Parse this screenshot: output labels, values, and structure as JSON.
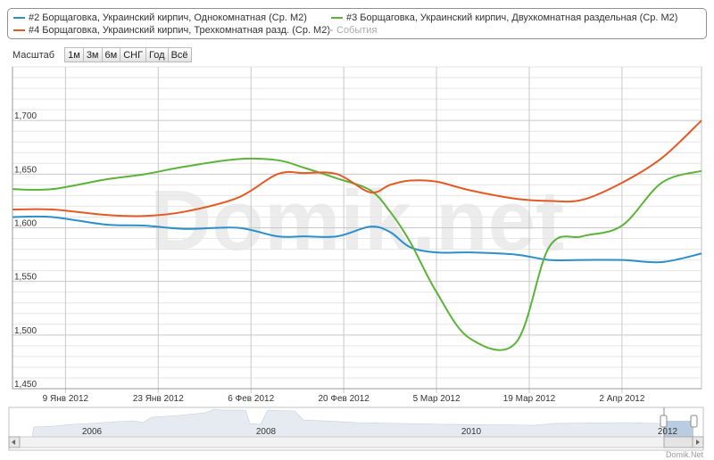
{
  "legend": [
    {
      "label": "#2 Борщаговка, Украинский кирпич, Однокомнатная (Ср. М2)",
      "color": "#2b8fcb"
    },
    {
      "label": "#3 Борщаговка, Украинский кирпич, Двухкомнатная раздельная (Ср. М2)",
      "color": "#5db23a"
    },
    {
      "label": "#4 Борщаговка, Украинский кирпич, Трехкомнатная разд. (Ср. М2)",
      "color": "#e35a24"
    },
    {
      "label": "События",
      "color": "#cccccc"
    }
  ],
  "range_selector": {
    "label": "Масштаб",
    "buttons": [
      "1м",
      "3м",
      "6м",
      "СНГ",
      "Год",
      "Всё"
    ]
  },
  "watermark": "Domik.net",
  "credits": "Domik.Net",
  "navigator": {
    "years": [
      "2006",
      "2008",
      "2010",
      "2012"
    ]
  },
  "chart_data": {
    "type": "line",
    "xlabel": "",
    "ylabel": "",
    "ylim": [
      1450,
      1750
    ],
    "yticks": [
      1450,
      1500,
      1550,
      1600,
      1650,
      1700
    ],
    "ytick_labels": [
      "1,450",
      "1,500",
      "1,550",
      "1,600",
      "1,650",
      "1,700"
    ],
    "xrange": [
      "2012-01-01",
      "2012-04-14"
    ],
    "xticks": [
      "2012-01-09",
      "2012-01-23",
      "2012-02-06",
      "2012-02-20",
      "2012-03-05",
      "2012-03-19",
      "2012-04-02"
    ],
    "xtick_labels": [
      "9 Янв 2012",
      "23 Янв 2012",
      "6 Фев 2012",
      "20 Фев 2012",
      "5 Мар 2012",
      "19 Мар 2012",
      "2 Апр 2012"
    ],
    "x": [
      "2012-01-01",
      "2012-01-07",
      "2012-01-15",
      "2012-01-21",
      "2012-01-27",
      "2012-02-04",
      "2012-02-10",
      "2012-02-14",
      "2012-02-19",
      "2012-02-24",
      "2012-02-27",
      "2012-03-01",
      "2012-03-05",
      "2012-03-10",
      "2012-03-17",
      "2012-03-22",
      "2012-03-27",
      "2012-04-02",
      "2012-04-08",
      "2012-04-14"
    ],
    "series": [
      {
        "name": "#2 Борщаговка, Украинский кирпич, Однокомнатная (Ср. М2)",
        "color": "#2b8fcb",
        "values": [
          1610,
          1610,
          1603,
          1602,
          1599,
          1600,
          1592,
          1592,
          1592,
          1601,
          1596,
          1582,
          1577,
          1577,
          1575,
          1570,
          1570,
          1570,
          1568,
          1576
        ]
      },
      {
        "name": "#3 Борщаговка, Украинский кирпич, Двухкомнатная раздельная (Ср. М2)",
        "color": "#5db23a",
        "values": [
          1636,
          1636,
          1645,
          1650,
          1657,
          1664,
          1663,
          1656,
          1646,
          1635,
          1615,
          1587,
          1540,
          1497,
          1493,
          1582,
          1592,
          1602,
          1642,
          1653
        ]
      },
      {
        "name": "#4 Борщаговка, Украинский кирпич, Трехкомнатная разд. (Ср. М2)",
        "color": "#e35a24",
        "values": [
          1617,
          1617,
          1612,
          1611,
          1615,
          1628,
          1650,
          1651,
          1650,
          1633,
          1640,
          1644,
          1643,
          1635,
          1627,
          1625,
          1626,
          1642,
          1665,
          1700
        ]
      }
    ]
  }
}
